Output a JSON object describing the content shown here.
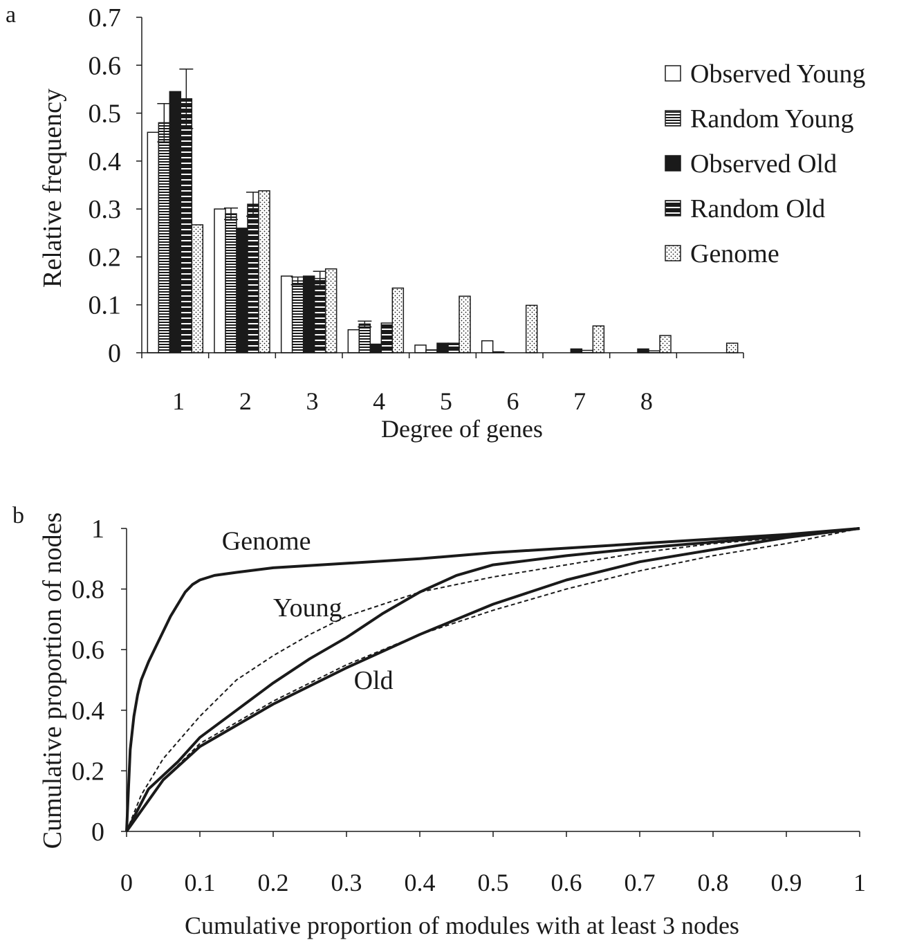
{
  "chart_data": [
    {
      "panel_label": "a",
      "type": "bar",
      "ylabel": "Relative frequency",
      "xlabel": "Degree of genes",
      "ylim": [
        0,
        0.7
      ],
      "yticks": [
        "0",
        "0.1",
        "0.2",
        "0.3",
        "0.4",
        "0.5",
        "0.6",
        "0.7"
      ],
      "categories": [
        "1",
        "2",
        "3",
        "4",
        "5",
        "6",
        "7",
        "8",
        ""
      ],
      "legend_position": "right",
      "series": [
        {
          "name": "Observed Young",
          "pattern": "white",
          "values": [
            0.46,
            0.3,
            0.16,
            0.048,
            0.016,
            0.025,
            0,
            0,
            0
          ]
        },
        {
          "name": "Random Young",
          "pattern": "hstripe",
          "values": [
            0.48,
            0.29,
            0.15,
            0.06,
            0.006,
            0.002,
            0,
            0,
            0
          ],
          "err": [
            0.04,
            0.012,
            0.008,
            0.006,
            0,
            0,
            0,
            0,
            0
          ]
        },
        {
          "name": "Observed Old",
          "pattern": "black",
          "values": [
            0.545,
            0.26,
            0.16,
            0.018,
            0.02,
            0,
            0.008,
            0.008,
            0
          ]
        },
        {
          "name": "Random Old",
          "pattern": "hstripe-dark",
          "values": [
            0.53,
            0.31,
            0.155,
            0.062,
            0.02,
            0,
            0.005,
            0.004,
            0
          ],
          "err": [
            0.062,
            0.025,
            0.015,
            0,
            0,
            0,
            0,
            0,
            0
          ]
        },
        {
          "name": "Genome",
          "pattern": "dots",
          "values": [
            0.267,
            0.338,
            0.175,
            0.135,
            0.118,
            0.099,
            0.056,
            0.036,
            0.02
          ]
        }
      ]
    },
    {
      "panel_label": "b",
      "type": "line",
      "ylabel": "Cumulative proportion of nodes",
      "xlabel": "Cumulative proportion of modules with at least 3 nodes",
      "xlim": [
        0,
        1
      ],
      "ylim": [
        0,
        1
      ],
      "xticks": [
        "0",
        "0.1",
        "0.2",
        "0.3",
        "0.4",
        "0.5",
        "0.6",
        "0.7",
        "0.8",
        "0.9",
        "1"
      ],
      "yticks": [
        "0",
        "0.2",
        "0.4",
        "0.6",
        "0.8",
        "1"
      ],
      "annotations": [
        {
          "text": "Genome",
          "x": 0.13,
          "y": 0.93
        },
        {
          "text": "Young",
          "x": 0.2,
          "y": 0.71
        },
        {
          "text": "Old",
          "x": 0.31,
          "y": 0.47
        }
      ],
      "series": [
        {
          "label": "Genome",
          "style": "solid",
          "x": [
            0,
            0.005,
            0.01,
            0.015,
            0.02,
            0.03,
            0.04,
            0.05,
            0.06,
            0.07,
            0.08,
            0.09,
            0.1,
            0.12,
            0.15,
            0.2,
            0.3,
            0.4,
            0.5,
            0.6,
            0.7,
            0.8,
            0.9,
            1.0
          ],
          "y": [
            0,
            0.27,
            0.38,
            0.45,
            0.5,
            0.56,
            0.61,
            0.66,
            0.71,
            0.75,
            0.79,
            0.815,
            0.83,
            0.845,
            0.855,
            0.87,
            0.885,
            0.9,
            0.92,
            0.935,
            0.95,
            0.965,
            0.98,
            1.0
          ]
        },
        {
          "label": "Young",
          "style": "solid",
          "x": [
            0,
            0.03,
            0.07,
            0.1,
            0.15,
            0.2,
            0.25,
            0.3,
            0.35,
            0.4,
            0.45,
            0.5,
            0.6,
            0.7,
            0.8,
            0.9,
            1.0
          ],
          "y": [
            0,
            0.14,
            0.23,
            0.31,
            0.4,
            0.49,
            0.57,
            0.64,
            0.72,
            0.79,
            0.845,
            0.88,
            0.91,
            0.935,
            0.955,
            0.975,
            1.0
          ]
        },
        {
          "label": "Young (random)",
          "style": "dashed",
          "x": [
            0,
            0.02,
            0.05,
            0.1,
            0.15,
            0.2,
            0.25,
            0.3,
            0.35,
            0.4,
            0.5,
            0.6,
            0.7,
            0.8,
            0.9,
            1.0
          ],
          "y": [
            0,
            0.12,
            0.24,
            0.38,
            0.5,
            0.58,
            0.65,
            0.71,
            0.75,
            0.79,
            0.84,
            0.88,
            0.92,
            0.95,
            0.97,
            1.0
          ]
        },
        {
          "label": "Old",
          "style": "solid",
          "x": [
            0,
            0.05,
            0.1,
            0.2,
            0.3,
            0.4,
            0.5,
            0.6,
            0.7,
            0.8,
            0.9,
            1.0
          ],
          "y": [
            0,
            0.17,
            0.28,
            0.42,
            0.54,
            0.65,
            0.75,
            0.83,
            0.89,
            0.93,
            0.97,
            1.0
          ]
        },
        {
          "label": "Old (random)",
          "style": "dashed",
          "x": [
            0,
            0.05,
            0.1,
            0.2,
            0.3,
            0.4,
            0.5,
            0.6,
            0.7,
            0.8,
            0.9,
            1.0
          ],
          "y": [
            0,
            0.17,
            0.29,
            0.43,
            0.55,
            0.65,
            0.73,
            0.8,
            0.86,
            0.91,
            0.95,
            1.0
          ]
        }
      ]
    }
  ]
}
